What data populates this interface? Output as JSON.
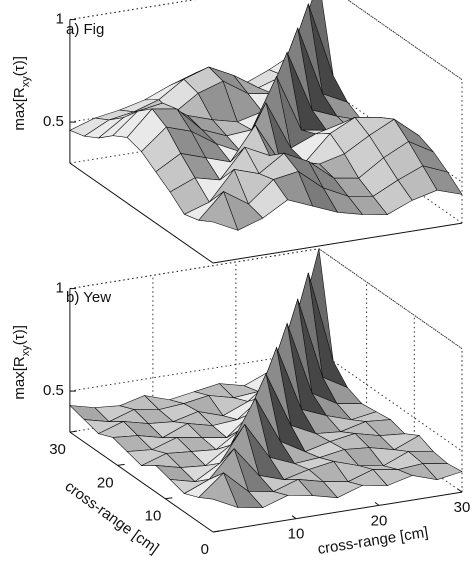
{
  "chart_data": [
    {
      "type": "surface",
      "title": "a) Fig",
      "zlabel": [
        "max[R",
        "xy",
        "(τ)]"
      ],
      "x": [
        0,
        3,
        6,
        9,
        12,
        15,
        18,
        21,
        24,
        27,
        30
      ],
      "y": [
        0,
        3,
        6,
        9,
        12,
        15,
        18,
        21,
        24,
        27,
        30
      ],
      "xlim": [
        0,
        30
      ],
      "ylim": [
        0,
        30
      ],
      "zlim": [
        0.3,
        1
      ],
      "zticks": [
        0.5,
        1
      ],
      "grid": true,
      "z": [
        [
          0.5,
          0.44,
          0.48,
          0.55,
          0.5,
          0.45,
          0.42,
          0.4,
          0.45,
          0.48,
          0.44
        ],
        [
          0.46,
          0.58,
          0.5,
          0.6,
          0.62,
          0.52,
          0.46,
          0.44,
          0.5,
          0.55,
          0.5
        ],
        [
          0.44,
          0.48,
          0.62,
          0.58,
          0.66,
          0.6,
          0.5,
          0.48,
          0.56,
          0.62,
          0.55
        ],
        [
          0.5,
          0.55,
          0.52,
          0.66,
          0.6,
          0.55,
          0.52,
          0.55,
          0.62,
          0.68,
          0.58
        ],
        [
          0.55,
          0.62,
          0.58,
          0.54,
          0.7,
          0.5,
          0.48,
          0.6,
          0.66,
          0.64,
          0.52
        ],
        [
          0.6,
          0.7,
          0.66,
          0.58,
          0.52,
          0.74,
          0.5,
          0.55,
          0.58,
          0.56,
          0.48
        ],
        [
          0.62,
          0.74,
          0.72,
          0.6,
          0.55,
          0.56,
          0.8,
          0.52,
          0.5,
          0.48,
          0.45
        ],
        [
          0.58,
          0.68,
          0.7,
          0.62,
          0.58,
          0.55,
          0.58,
          0.85,
          0.55,
          0.5,
          0.46
        ],
        [
          0.52,
          0.6,
          0.62,
          0.58,
          0.66,
          0.7,
          0.62,
          0.6,
          0.9,
          0.56,
          0.5
        ],
        [
          0.48,
          0.54,
          0.56,
          0.6,
          0.68,
          0.72,
          0.66,
          0.58,
          0.62,
          0.95,
          0.58
        ],
        [
          0.46,
          0.5,
          0.52,
          0.55,
          0.6,
          0.64,
          0.6,
          0.55,
          0.6,
          0.66,
          1.0
        ]
      ]
    },
    {
      "type": "surface",
      "title": "b) Yew",
      "zlabel": [
        "max[R",
        "xy",
        "(τ)]"
      ],
      "xlabel": "cross-range [cm]",
      "ylabel": "cross-range [cm]",
      "x": [
        0,
        3,
        6,
        9,
        12,
        15,
        18,
        21,
        24,
        27,
        30
      ],
      "y": [
        0,
        3,
        6,
        9,
        12,
        15,
        18,
        21,
        24,
        27,
        30
      ],
      "xlim": [
        0,
        30
      ],
      "ylim": [
        0,
        30
      ],
      "zlim": [
        0.3,
        1
      ],
      "xticks": [
        10,
        20,
        30
      ],
      "yticks": [
        0,
        10,
        20,
        30
      ],
      "zticks": [
        0.5,
        1
      ],
      "grid": true,
      "z": [
        [
          0.46,
          0.4,
          0.38,
          0.42,
          0.4,
          0.37,
          0.41,
          0.39,
          0.42,
          0.38,
          0.4
        ],
        [
          0.42,
          0.52,
          0.41,
          0.39,
          0.43,
          0.4,
          0.38,
          0.42,
          0.4,
          0.41,
          0.39
        ],
        [
          0.39,
          0.44,
          0.57,
          0.42,
          0.38,
          0.41,
          0.43,
          0.39,
          0.37,
          0.42,
          0.4
        ],
        [
          0.41,
          0.38,
          0.45,
          0.62,
          0.44,
          0.39,
          0.4,
          0.42,
          0.41,
          0.38,
          0.43
        ],
        [
          0.43,
          0.4,
          0.39,
          0.47,
          0.68,
          0.45,
          0.38,
          0.41,
          0.43,
          0.4,
          0.39
        ],
        [
          0.38,
          0.42,
          0.41,
          0.4,
          0.48,
          0.73,
          0.46,
          0.4,
          0.39,
          0.42,
          0.41
        ],
        [
          0.4,
          0.39,
          0.43,
          0.41,
          0.39,
          0.49,
          0.79,
          0.47,
          0.42,
          0.38,
          0.4
        ],
        [
          0.42,
          0.41,
          0.38,
          0.43,
          0.4,
          0.41,
          0.5,
          0.84,
          0.48,
          0.41,
          0.39
        ],
        [
          0.39,
          0.43,
          0.4,
          0.39,
          0.42,
          0.38,
          0.43,
          0.52,
          0.89,
          0.49,
          0.42
        ],
        [
          0.41,
          0.38,
          0.42,
          0.4,
          0.41,
          0.43,
          0.4,
          0.41,
          0.53,
          0.95,
          0.5
        ],
        [
          0.43,
          0.4,
          0.39,
          0.42,
          0.38,
          0.4,
          0.42,
          0.39,
          0.44,
          0.55,
          1.0
        ]
      ]
    }
  ]
}
